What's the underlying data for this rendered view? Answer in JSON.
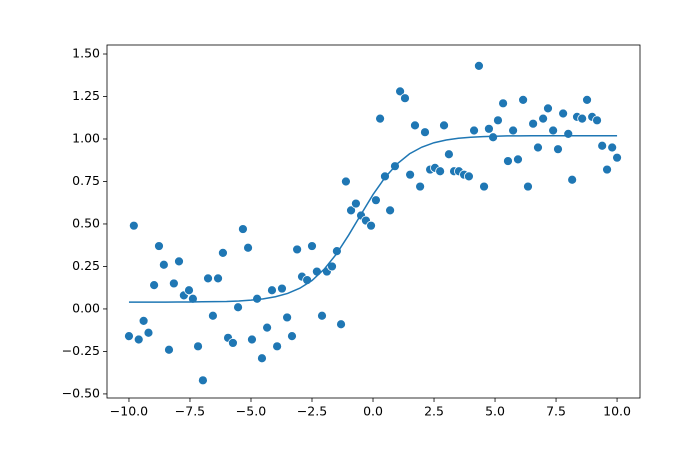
{
  "chart_data": {
    "type": "scatter",
    "xlim": [
      -10.9,
      10.94
    ],
    "ylim": [
      -0.524,
      1.553
    ],
    "xticks": [
      {
        "value": -10,
        "label": "−10.0"
      },
      {
        "value": -7.5,
        "label": "−7.5"
      },
      {
        "value": -5,
        "label": "−5.0"
      },
      {
        "value": -2.5,
        "label": "−2.5"
      },
      {
        "value": 0,
        "label": "0.0"
      },
      {
        "value": 2.5,
        "label": "2.5"
      },
      {
        "value": 5,
        "label": "5.0"
      },
      {
        "value": 7.5,
        "label": "7.5"
      },
      {
        "value": 10,
        "label": "10.0"
      }
    ],
    "yticks": [
      {
        "value": -0.5,
        "label": "−0.50"
      },
      {
        "value": -0.25,
        "label": "−0.25"
      },
      {
        "value": 0,
        "label": "0.00"
      },
      {
        "value": 0.25,
        "label": "0.25"
      },
      {
        "value": 0.5,
        "label": "0.50"
      },
      {
        "value": 0.75,
        "label": "0.75"
      },
      {
        "value": 1,
        "label": "1.00"
      },
      {
        "value": 1.25,
        "label": "1.25"
      },
      {
        "value": 1.5,
        "label": "1.50"
      }
    ],
    "series": [
      {
        "type": "scatter",
        "color": "#1f77b4",
        "x": [
          -10.0,
          -9.8,
          -9.6,
          -9.4,
          -9.2,
          -8.97,
          -8.77,
          -8.57,
          -8.36,
          -8.16,
          -7.95,
          -7.75,
          -7.54,
          -7.38,
          -7.17,
          -6.97,
          -6.76,
          -6.56,
          -6.35,
          -6.15,
          -5.94,
          -5.74,
          -5.53,
          -5.33,
          -5.12,
          -4.96,
          -4.75,
          -4.55,
          -4.34,
          -4.14,
          -3.93,
          -3.73,
          -3.52,
          -3.32,
          -3.11,
          -2.91,
          -2.7,
          -2.5,
          -2.3,
          -2.09,
          -1.89,
          -1.68,
          -1.48,
          -1.31,
          -1.11,
          -0.9,
          -0.7,
          -0.49,
          -0.29,
          -0.08,
          0.12,
          0.29,
          0.49,
          0.7,
          0.9,
          1.11,
          1.31,
          1.52,
          1.72,
          1.93,
          2.13,
          2.34,
          2.54,
          2.75,
          2.91,
          3.11,
          3.32,
          3.52,
          3.73,
          3.93,
          4.14,
          4.34,
          4.55,
          4.75,
          4.92,
          5.12,
          5.33,
          5.53,
          5.74,
          5.94,
          6.15,
          6.35,
          6.56,
          6.76,
          6.97,
          7.17,
          7.38,
          7.58,
          7.79,
          8.0,
          8.16,
          8.36,
          8.57,
          8.77,
          8.98,
          9.18,
          9.39,
          9.59,
          9.8,
          10.0
        ],
        "values": [
          -0.16,
          0.49,
          -0.18,
          -0.07,
          -0.14,
          0.14,
          0.37,
          0.26,
          -0.24,
          0.15,
          0.28,
          0.08,
          0.11,
          0.06,
          -0.22,
          -0.42,
          0.18,
          -0.04,
          0.18,
          0.33,
          -0.17,
          -0.2,
          0.01,
          0.47,
          0.36,
          -0.18,
          0.06,
          -0.29,
          -0.11,
          0.11,
          -0.22,
          0.12,
          -0.05,
          -0.16,
          0.35,
          0.19,
          0.17,
          0.37,
          0.22,
          -0.04,
          0.22,
          0.25,
          0.34,
          -0.09,
          0.75,
          0.58,
          0.62,
          0.55,
          0.52,
          0.49,
          0.64,
          1.12,
          0.78,
          0.58,
          0.84,
          1.28,
          1.24,
          0.79,
          1.08,
          0.72,
          1.04,
          0.82,
          0.83,
          0.81,
          1.08,
          0.91,
          0.81,
          0.81,
          0.79,
          0.78,
          1.05,
          1.43,
          0.72,
          1.06,
          1.01,
          1.11,
          1.21,
          0.87,
          1.05,
          0.88,
          1.23,
          0.72,
          1.09,
          0.95,
          1.12,
          1.18,
          1.05,
          0.94,
          1.15,
          1.03,
          0.76,
          1.13,
          1.12,
          1.23,
          1.13,
          1.11,
          0.96,
          0.82,
          0.95,
          0.89
        ]
      },
      {
        "type": "line",
        "color": "#1f77b4",
        "x": [
          -10,
          -9.5,
          -9,
          -8.5,
          -8,
          -7.5,
          -7,
          -6.5,
          -6,
          -5.5,
          -5,
          -4.5,
          -4,
          -3.5,
          -3,
          -2.5,
          -2,
          -1.5,
          -1,
          -0.5,
          0,
          0.5,
          1,
          1.5,
          2,
          2.5,
          3,
          3.5,
          4,
          4.5,
          5,
          5.5,
          6,
          6.5,
          7,
          7.5,
          8,
          8.5,
          9,
          9.5,
          10
        ],
        "values": [
          0.04,
          0.04,
          0.04,
          0.04,
          0.041,
          0.041,
          0.042,
          0.043,
          0.044,
          0.047,
          0.052,
          0.059,
          0.072,
          0.091,
          0.122,
          0.167,
          0.234,
          0.323,
          0.434,
          0.554,
          0.673,
          0.775,
          0.855,
          0.913,
          0.952,
          0.978,
          0.994,
          1.004,
          1.01,
          1.014,
          1.016,
          1.018,
          1.018,
          1.019,
          1.019,
          1.019,
          1.019,
          1.019,
          1.019,
          1.019,
          1.019
        ]
      }
    ]
  }
}
